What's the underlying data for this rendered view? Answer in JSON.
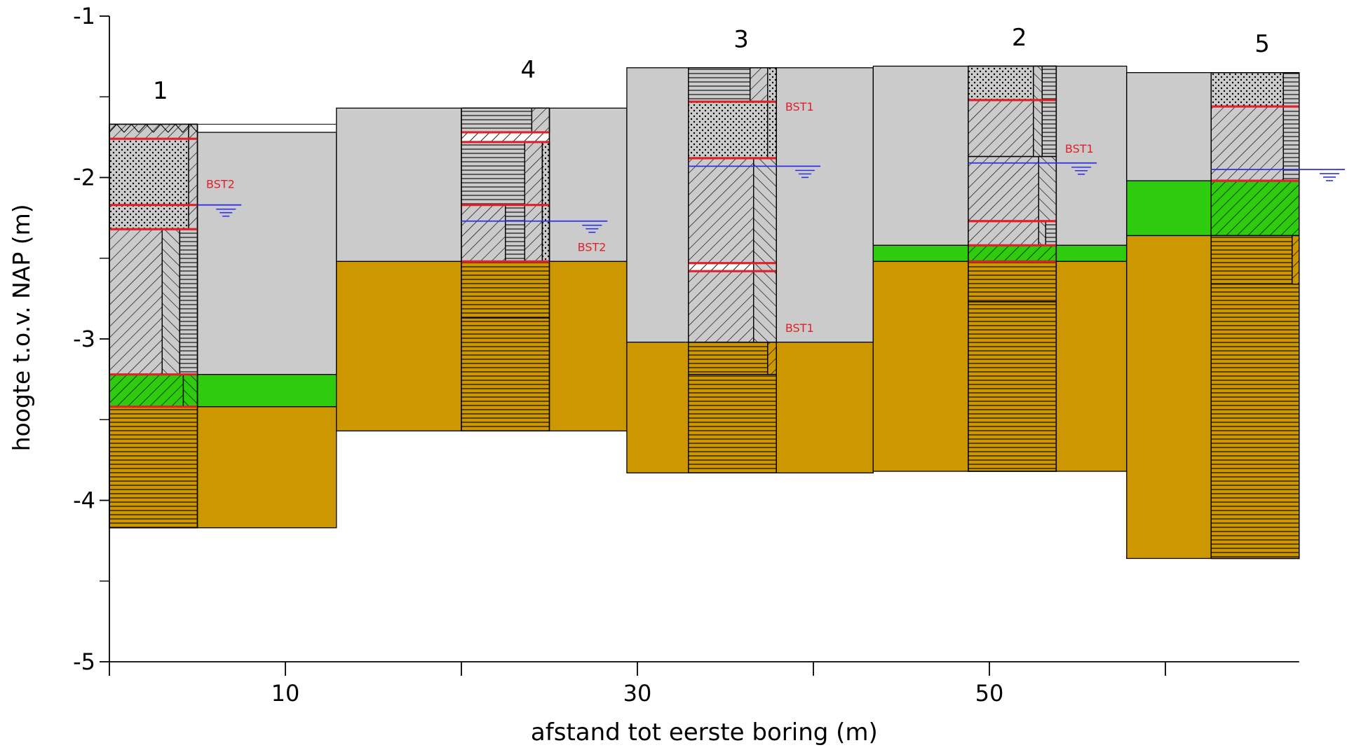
{
  "chart_data": {
    "type": "geological-cross-section",
    "ylabel": "hoogte t.o.v. NAP (m)",
    "xlabel": "afstand tot eerste boring (m)",
    "ylim": [
      -5,
      -1
    ],
    "y_ticks": [
      {
        "v": -1,
        "label": "-1"
      },
      {
        "v": -2,
        "label": "-2"
      },
      {
        "v": -3,
        "label": "-3"
      },
      {
        "v": -4,
        "label": "-4"
      },
      {
        "v": -5,
        "label": "-5"
      }
    ],
    "x_ticks": [
      {
        "v": 0,
        "label": ""
      },
      {
        "v": 10,
        "label": "10"
      },
      {
        "v": 20,
        "label": ""
      },
      {
        "v": 30,
        "label": "30"
      },
      {
        "v": 40,
        "label": ""
      },
      {
        "v": 50,
        "label": "50"
      },
      {
        "v": 60,
        "label": ""
      }
    ],
    "colors": {
      "gray_layer": "#cbcbcb",
      "green_layer": "#2ecb0e",
      "gold_layer": "#cc9700",
      "boundary_line": "#e0202a",
      "water_level": "#3030e0",
      "label_red": "#e0202a"
    },
    "sections": [
      {
        "x0": 0,
        "x1": 12.9,
        "gray": [
          -1.72,
          -3.22
        ],
        "green": [
          -3.22,
          -3.42
        ],
        "gold": [
          -3.42,
          -4.17
        ]
      },
      {
        "x0": 12.9,
        "x1": 29.4,
        "gray": [
          -1.57,
          -2.52
        ],
        "green": null,
        "gold": [
          -2.52,
          -3.57
        ]
      },
      {
        "x0": 29.4,
        "x1": 43.4,
        "gray": [
          -1.32,
          -3.02
        ],
        "green": null,
        "gold": [
          -3.02,
          -3.83
        ]
      },
      {
        "x0": 43.4,
        "x1": 57.8,
        "gray": [
          -1.31,
          -2.42
        ],
        "green": [
          -2.42,
          -2.52
        ],
        "gold": [
          -2.52,
          -3.82
        ]
      },
      {
        "x0": 57.8,
        "x1": 67.6,
        "gray": [
          -1.35,
          -2.02
        ],
        "green": [
          -2.02,
          -2.36
        ],
        "gold": [
          -2.36,
          -4.36
        ]
      }
    ],
    "borings": [
      {
        "label": "1",
        "label_x": 2.9,
        "label_y": -1.46,
        "x0": 0,
        "x1": 5,
        "top": -1.67,
        "bottom": -4.17,
        "surface_hatch": true,
        "layers": [
          {
            "top": -1.67,
            "bottom": -1.76,
            "lith": "hatch"
          },
          {
            "top": -1.76,
            "bottom": -2.17,
            "lith": "dots"
          },
          {
            "top": -2.17,
            "bottom": -2.32,
            "lith": "dots"
          },
          {
            "top": -2.32,
            "bottom": -3.22,
            "lith": "hatch"
          },
          {
            "top": -3.22,
            "bottom": -3.42,
            "lith": "green-hatch"
          },
          {
            "top": -3.42,
            "bottom": -4.17,
            "lith": "gold-horiz"
          }
        ],
        "columns": [
          {
            "x0": 4.5,
            "x1": 5,
            "top": -1.67,
            "bottom": -2.32,
            "lith": "hatch"
          },
          {
            "x0": 3.0,
            "x1": 4.0,
            "top": -2.32,
            "bottom": -3.22,
            "lith": "hatch-rev"
          },
          {
            "x0": 4.0,
            "x1": 5.0,
            "top": -2.32,
            "bottom": -3.22,
            "lith": "horiz"
          },
          {
            "x0": 4.2,
            "x1": 5.0,
            "top": -3.22,
            "bottom": -3.42,
            "lith": "green-hatch-rev"
          }
        ],
        "red_lines": [
          -1.76,
          -2.17,
          -2.32,
          -3.22,
          -3.42
        ],
        "water": {
          "y": -2.17,
          "x0": 5.0,
          "x1": 7.5
        },
        "annotations": [
          {
            "text": "BST2",
            "x": 5.5,
            "y": -2.04
          }
        ]
      },
      {
        "label": "4",
        "label_x": 23.8,
        "label_y": -1.33,
        "x0": 20,
        "x1": 25,
        "top": -1.57,
        "bottom": -3.57,
        "surface_hatch": false,
        "layers": [
          {
            "top": -1.57,
            "bottom": -1.72,
            "lith": "horiz"
          },
          {
            "top": -1.72,
            "bottom": -1.78,
            "lith": "red-hatch"
          },
          {
            "top": -1.78,
            "bottom": -2.17,
            "lith": "horiz"
          },
          {
            "top": -2.17,
            "bottom": -2.52,
            "lith": "hatch"
          },
          {
            "top": -2.52,
            "bottom": -2.87,
            "lith": "gold-horiz"
          },
          {
            "top": -2.87,
            "bottom": -3.57,
            "lith": "gold-horiz"
          }
        ],
        "columns": [
          {
            "x0": 24.0,
            "x1": 25.0,
            "top": -1.57,
            "bottom": -1.72,
            "lith": "hatch"
          },
          {
            "x0": 23.6,
            "x1": 24.6,
            "top": -1.78,
            "bottom": -2.52,
            "lith": "hatch"
          },
          {
            "x0": 24.6,
            "x1": 25.0,
            "top": -1.78,
            "bottom": -2.52,
            "lith": "dots"
          },
          {
            "x0": 22.5,
            "x1": 23.6,
            "top": -2.17,
            "bottom": -2.52,
            "lith": "horiz"
          }
        ],
        "red_lines": [
          -1.72,
          -1.78,
          -2.17,
          -2.52
        ],
        "water": {
          "y": -2.27,
          "x0": 20.0,
          "x1": 28.3
        },
        "annotations": [
          {
            "text": "BST2",
            "x": 26.6,
            "y": -2.43
          }
        ]
      },
      {
        "label": "3",
        "label_x": 35.9,
        "label_y": -1.14,
        "x0": 32.9,
        "x1": 37.9,
        "top": -1.32,
        "bottom": -3.83,
        "surface_hatch": false,
        "layers": [
          {
            "top": -1.32,
            "bottom": -1.53,
            "lith": "horiz"
          },
          {
            "top": -1.53,
            "bottom": -1.88,
            "lith": "dots"
          },
          {
            "top": -1.88,
            "bottom": -2.53,
            "lith": "hatch"
          },
          {
            "top": -2.53,
            "bottom": -2.58,
            "lith": "red-hatch"
          },
          {
            "top": -2.58,
            "bottom": -3.02,
            "lith": "hatch"
          },
          {
            "top": -3.02,
            "bottom": -3.22,
            "lith": "gold-horiz"
          },
          {
            "top": -3.22,
            "bottom": -3.83,
            "lith": "gold-horiz"
          }
        ],
        "columns": [
          {
            "x0": 36.4,
            "x1": 37.4,
            "top": -1.32,
            "bottom": -1.53,
            "lith": "hatch"
          },
          {
            "x0": 37.4,
            "x1": 37.9,
            "top": -1.32,
            "bottom": -1.88,
            "lith": "dots"
          },
          {
            "x0": 36.6,
            "x1": 37.9,
            "top": -1.88,
            "bottom": -3.02,
            "lith": "hatch-rev"
          },
          {
            "x0": 37.4,
            "x1": 37.9,
            "top": -3.02,
            "bottom": -3.22,
            "lith": "gold-hatch"
          }
        ],
        "red_lines": [
          -1.53,
          -1.88,
          -2.53,
          -2.58
        ],
        "water": {
          "y": -1.93,
          "x0": 32.9,
          "x1": 40.4
        },
        "annotations": [
          {
            "text": "BST1",
            "x": 38.4,
            "y": -1.56
          },
          {
            "text": "BST1",
            "x": 38.4,
            "y": -2.93
          }
        ]
      },
      {
        "label": "2",
        "label_x": 51.7,
        "label_y": -1.13,
        "x0": 48.8,
        "x1": 53.8,
        "top": -1.31,
        "bottom": -3.82,
        "surface_hatch": false,
        "layers": [
          {
            "top": -1.31,
            "bottom": -1.52,
            "lith": "dots"
          },
          {
            "top": -1.52,
            "bottom": -1.87,
            "lith": "hatch"
          },
          {
            "top": -1.87,
            "bottom": -2.27,
            "lith": "hatch"
          },
          {
            "top": -2.27,
            "bottom": -2.42,
            "lith": "hatch"
          },
          {
            "top": -2.42,
            "bottom": -2.52,
            "lith": "green-hatch"
          },
          {
            "top": -2.52,
            "bottom": -2.77,
            "lith": "gold-horiz"
          },
          {
            "top": -2.77,
            "bottom": -3.82,
            "lith": "gold-horiz"
          }
        ],
        "columns": [
          {
            "x0": 52.5,
            "x1": 53.0,
            "top": -1.31,
            "bottom": -1.87,
            "lith": "hatch-rev"
          },
          {
            "x0": 53.0,
            "x1": 53.8,
            "top": -1.31,
            "bottom": -1.87,
            "lith": "horiz"
          },
          {
            "x0": 52.8,
            "x1": 53.8,
            "top": -1.87,
            "bottom": -2.42,
            "lith": "hatch-rev"
          },
          {
            "x0": 53.2,
            "x1": 53.8,
            "top": -2.27,
            "bottom": -2.42,
            "lith": "horiz"
          }
        ],
        "red_lines": [
          -1.52,
          -2.27,
          -2.42,
          -2.52
        ],
        "water": {
          "y": -1.91,
          "x0": 48.8,
          "x1": 56.1
        },
        "annotations": [
          {
            "text": "BST1",
            "x": 54.3,
            "y": -1.82
          }
        ]
      },
      {
        "label": "5",
        "label_x": 65.5,
        "label_y": -1.17,
        "x0": 62.6,
        "x1": 67.6,
        "top": -1.35,
        "bottom": -4.36,
        "surface_hatch": false,
        "layers": [
          {
            "top": -1.35,
            "bottom": -1.56,
            "lith": "dots"
          },
          {
            "top": -1.56,
            "bottom": -2.02,
            "lith": "hatch"
          },
          {
            "top": -2.02,
            "bottom": -2.36,
            "lith": "green-hatch"
          },
          {
            "top": -2.36,
            "bottom": -2.66,
            "lith": "gold-horiz"
          },
          {
            "top": -2.66,
            "bottom": -4.36,
            "lith": "gold-horiz"
          }
        ],
        "columns": [
          {
            "x0": 66.7,
            "x1": 67.6,
            "top": -1.35,
            "bottom": -2.02,
            "lith": "horiz"
          },
          {
            "x0": 67.2,
            "x1": 67.6,
            "top": -2.36,
            "bottom": -2.66,
            "lith": "gold-hatch"
          }
        ],
        "red_lines": [
          -1.56,
          -2.02
        ],
        "water": {
          "y": -1.95,
          "x0": 62.6,
          "x1": 70.2
        },
        "annotations": []
      }
    ]
  }
}
